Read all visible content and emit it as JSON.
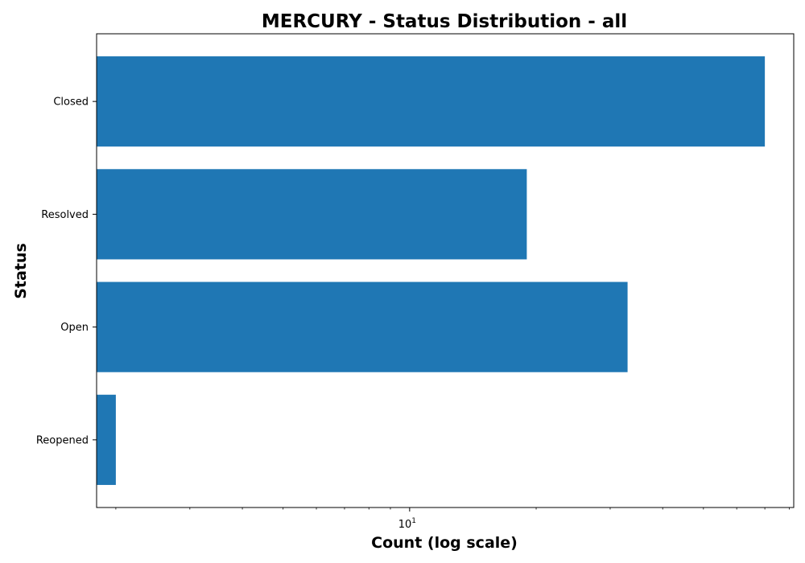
{
  "chart_data": {
    "type": "bar",
    "orientation": "horizontal",
    "title": "MERCURY - Status Distribution - all",
    "xlabel": "Count (log scale)",
    "ylabel": "Status",
    "x_scale": "log",
    "xlim": [
      1.8,
      82
    ],
    "categories": [
      "Reopened",
      "Open",
      "Resolved",
      "Closed"
    ],
    "values": [
      2,
      33,
      19,
      70
    ],
    "x_ticks": [
      {
        "base": "10",
        "exponent": "1",
        "value": 10
      }
    ],
    "grid": false,
    "legend": "none",
    "bar_color": "#1f77b4"
  }
}
